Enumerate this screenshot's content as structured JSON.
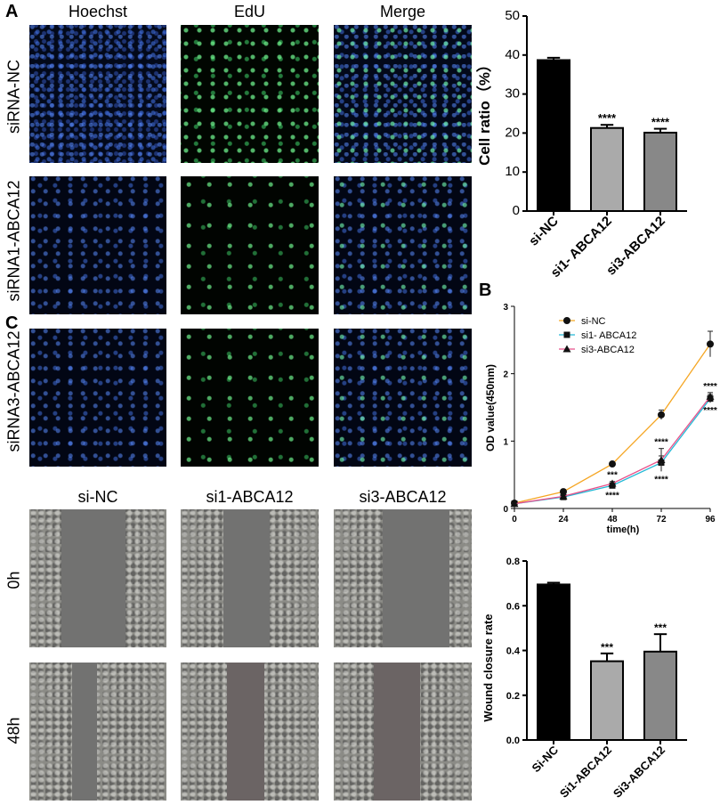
{
  "panel_letters": {
    "a": "A",
    "b": "B",
    "c": "C"
  },
  "panel_a": {
    "column_headers": [
      "Hoechst",
      "EdU",
      "Merge"
    ],
    "row_labels": [
      "siRNA-NC",
      "siRNA1-ABCA12",
      "siRNA3-ABCA12"
    ]
  },
  "panel_c": {
    "column_headers": [
      "si-NC",
      "si1-ABCA12",
      "si3-ABCA12"
    ],
    "row_labels": [
      "0h",
      "48h"
    ]
  },
  "chart_data": [
    {
      "id": "cell-ratio",
      "type": "bar",
      "categories": [
        "si-NC",
        "si1- ABCA12",
        "si3-ABCA12"
      ],
      "values": [
        38.7,
        21.3,
        20.1
      ],
      "errors": [
        0.6,
        0.8,
        1.0
      ],
      "significance": [
        "",
        "****",
        "****"
      ],
      "ylabel": "Cell ratio（%）",
      "ylim": [
        0,
        50
      ],
      "yticks": [
        0,
        10,
        20,
        30,
        40,
        50
      ],
      "colors": [
        "#000000",
        "#aaaaaa",
        "#888888"
      ],
      "grid": false
    },
    {
      "id": "od-value",
      "type": "line",
      "x": [
        0,
        24,
        48,
        72,
        96
      ],
      "xlabel": "time(h)",
      "ylabel": "OD value(450nm)",
      "xlim": [
        0,
        96
      ],
      "ylim": [
        0,
        3
      ],
      "yticks": [
        0,
        1,
        2,
        3
      ],
      "legend_position": "top-left",
      "series": [
        {
          "name": "si-NC",
          "values": [
            0.08,
            0.25,
            0.66,
            1.39,
            2.44
          ],
          "errors": [
            0.01,
            0.02,
            0.03,
            0.07,
            0.19
          ],
          "color": "#f5a623",
          "marker": "circle"
        },
        {
          "name": "si1- ABCA12",
          "values": [
            0.07,
            0.17,
            0.34,
            0.68,
            1.63
          ],
          "errors": [
            0.01,
            0.02,
            0.03,
            0.1,
            0.06
          ],
          "color": "#25b9d6",
          "marker": "square"
        },
        {
          "name": "si3-ABCA12",
          "values": [
            0.07,
            0.18,
            0.37,
            0.72,
            1.66
          ],
          "errors": [
            0.01,
            0.02,
            0.03,
            0.17,
            0.06
          ],
          "color": "#e8508a",
          "marker": "triangle"
        }
      ],
      "annotations": [
        {
          "x": 48,
          "text": "***",
          "where": "above"
        },
        {
          "x": 48,
          "text": "****",
          "where": "below"
        },
        {
          "x": 72,
          "text": "****",
          "where": "above"
        },
        {
          "x": 72,
          "text": "****",
          "where": "below"
        },
        {
          "x": 96,
          "text": "****",
          "where": "above"
        },
        {
          "x": 96,
          "text": "****",
          "where": "below"
        }
      ]
    },
    {
      "id": "wound-closure",
      "type": "bar",
      "categories": [
        "Si-NC",
        "Si1-ABCA12",
        "Si3-ABCA12"
      ],
      "values": [
        0.695,
        0.352,
        0.395
      ],
      "errors": [
        0.008,
        0.035,
        0.078
      ],
      "significance": [
        "",
        "***",
        "***"
      ],
      "ylabel": "Wound closure rate",
      "ylim": [
        0,
        0.8
      ],
      "yticks": [
        0.0,
        0.2,
        0.4,
        0.6,
        0.8
      ],
      "colors": [
        "#000000",
        "#aaaaaa",
        "#888888"
      ],
      "grid": false
    }
  ]
}
